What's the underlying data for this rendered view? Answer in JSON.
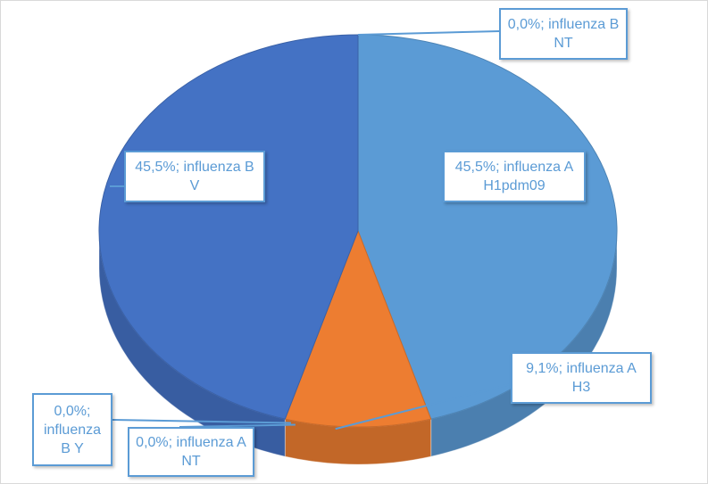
{
  "chart_data": {
    "type": "pie",
    "style": "3d",
    "title": "",
    "categories": [
      "influenza B NT",
      "influenza A H1pdm09",
      "influenza A H3",
      "influenza A NT",
      "influenza B Y",
      "influenza B V"
    ],
    "values": [
      0.0,
      45.5,
      9.1,
      0.0,
      0.0,
      45.5
    ],
    "colors": [
      "#5b9bd5",
      "#5b9bd5",
      "#ed7d31",
      "#a5a5a5",
      "#ffc000",
      "#4472c4"
    ],
    "labels": [
      "0,0%; influenza B NT",
      "45,5%; influenza A H1pdm09",
      "9,1%; influenza A H3",
      "0,0%; influenza A NT",
      "0,0%; influenza B Y",
      "45,5%; influenza B V"
    ],
    "legend": "none",
    "label_color": "#5b9bd5"
  }
}
